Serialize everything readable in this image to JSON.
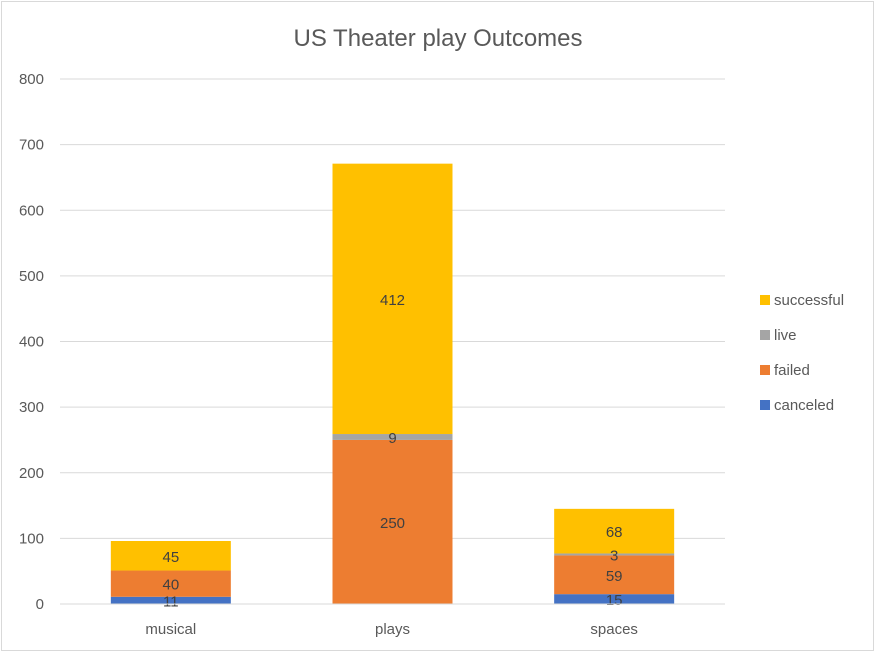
{
  "chart_data": {
    "type": "bar",
    "stacked": true,
    "title": "US Theater play Outcomes",
    "categories": [
      "musical",
      "plays",
      "spaces"
    ],
    "series": [
      {
        "name": "canceled",
        "color": "#4472c4",
        "values": [
          11,
          0,
          15
        ],
        "labels": [
          "11",
          "",
          "15"
        ]
      },
      {
        "name": "failed",
        "color": "#ed7d31",
        "values": [
          40,
          250,
          59
        ],
        "labels": [
          "40",
          "250",
          "59"
        ]
      },
      {
        "name": "live",
        "color": "#a5a5a5",
        "values": [
          0,
          9,
          3
        ],
        "labels": [
          "",
          "9",
          "3"
        ]
      },
      {
        "name": "successful",
        "color": "#ffc000",
        "values": [
          45,
          412,
          68
        ],
        "labels": [
          "45",
          "412",
          "68"
        ]
      }
    ],
    "ylim": [
      0,
      800
    ],
    "yticks": [
      "0",
      "100",
      "200",
      "300",
      "400",
      "500",
      "600",
      "700",
      "800"
    ],
    "grid": true,
    "legend_position": "right"
  }
}
